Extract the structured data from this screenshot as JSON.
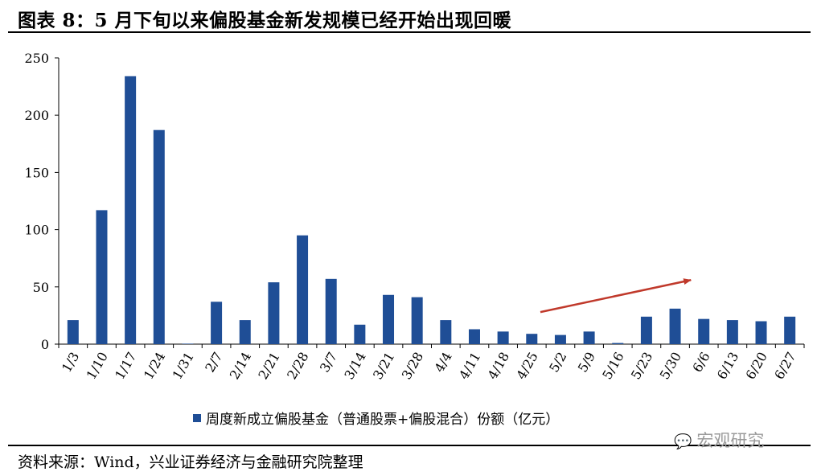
{
  "header": {
    "title": "图表 8：5 月下旬以来偏股基金新发规模已经开始出现回暖"
  },
  "footer": {
    "source": "资料来源：Wind，兴业证券经济与金融研究院整理"
  },
  "watermark": {
    "text": "宏观研究"
  },
  "colors": {
    "bar": "#1f4e96",
    "arrow": "#c0392b"
  },
  "chart_data": {
    "type": "bar",
    "categories": [
      "1/3",
      "1/10",
      "1/17",
      "1/24",
      "1/31",
      "2/7",
      "2/14",
      "2/21",
      "2/28",
      "3/7",
      "3/14",
      "3/21",
      "3/28",
      "4/4",
      "4/11",
      "4/18",
      "4/25",
      "5/2",
      "5/9",
      "5/16",
      "5/23",
      "5/30",
      "6/6",
      "6/13",
      "6/20",
      "6/27"
    ],
    "series": [
      {
        "name": "周度新成立偏股基金（普通股票+偏股混合）份额（亿元）",
        "values": [
          21,
          117,
          234,
          187,
          0,
          37,
          21,
          54,
          95,
          57,
          17,
          43,
          41,
          21,
          13,
          11,
          9,
          8,
          11,
          1,
          24,
          31,
          22,
          21,
          20,
          24
        ]
      }
    ],
    "ylim": [
      0,
      250
    ],
    "yticks": [
      0,
      50,
      100,
      150,
      200,
      250
    ],
    "legend_position": "bottom",
    "annotation": "upward-trend-arrow"
  }
}
